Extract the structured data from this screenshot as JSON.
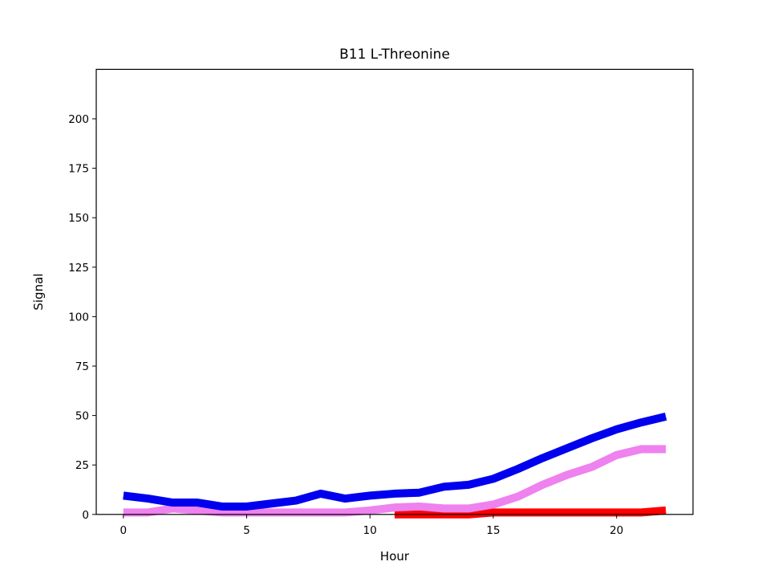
{
  "chart_data": {
    "type": "line",
    "title": "B11 L-Threonine",
    "xlabel": "Hour",
    "ylabel": "Signal",
    "xlim": [
      -1.1,
      23.1
    ],
    "ylim": [
      0,
      225
    ],
    "xticks": [
      0,
      5,
      10,
      15,
      20
    ],
    "yticks": [
      0,
      25,
      50,
      75,
      100,
      125,
      150,
      175,
      200
    ],
    "grid": false,
    "x": [
      0,
      1,
      2,
      3,
      4,
      5,
      6,
      7,
      8,
      9,
      10,
      11,
      12,
      13,
      14,
      15,
      16,
      17,
      18,
      19,
      20,
      21,
      22
    ],
    "series": [
      {
        "color": "#0000ee",
        "values": [
          9.5,
          8,
          6,
          6,
          4,
          4,
          5.5,
          7,
          10.5,
          8,
          9.5,
          10.5,
          11,
          14,
          15,
          18,
          23,
          28.5,
          33.5,
          38.5,
          43,
          46.5,
          49.5
        ]
      },
      {
        "color": "#ee82ee",
        "values": [
          1,
          1,
          3,
          2,
          1,
          1,
          1,
          1,
          1,
          1,
          2,
          3.5,
          4,
          3,
          3,
          5,
          9,
          15,
          20,
          24,
          30,
          33,
          33
        ]
      },
      {
        "color": "#ff0000",
        "values": [
          null,
          null,
          null,
          null,
          null,
          null,
          null,
          null,
          null,
          null,
          null,
          0,
          0,
          0,
          0,
          1,
          1,
          1,
          1,
          1,
          1,
          1,
          2
        ]
      }
    ]
  }
}
